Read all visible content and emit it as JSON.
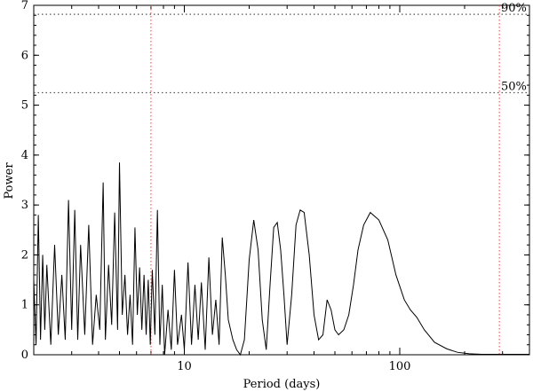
{
  "chart_data": {
    "type": "line",
    "title": "",
    "xlabel": "Period (days)",
    "ylabel": "Power",
    "x_scale": "log",
    "xlim": [
      2,
      400
    ],
    "ylim": [
      0,
      7
    ],
    "x_ticks": [
      10,
      100
    ],
    "x_tick_labels": [
      "10",
      "100"
    ],
    "y_ticks": [
      0,
      1,
      2,
      3,
      4,
      5,
      6,
      7
    ],
    "y_tick_labels": [
      "0",
      "1",
      "2",
      "3",
      "4",
      "5",
      "6",
      "7"
    ],
    "grid": false,
    "colors": {
      "curve": "#000000",
      "threshold": "#555555",
      "marker": "#e8463c"
    },
    "thresholds": [
      {
        "label": "90%",
        "value": 6.82
      },
      {
        "label": "50%",
        "value": 5.25
      }
    ],
    "vertical_markers": [
      {
        "x": 7.0
      },
      {
        "x": 290
      }
    ],
    "series": [
      {
        "x": [
          2.0,
          2.05,
          2.1,
          2.15,
          2.2,
          2.25,
          2.3,
          2.4,
          2.5,
          2.6,
          2.7,
          2.8,
          2.9,
          3.0,
          3.1,
          3.2,
          3.3,
          3.45,
          3.6,
          3.75,
          3.9,
          4.05,
          4.2,
          4.3,
          4.45,
          4.6,
          4.75,
          4.9,
          5.0,
          5.15,
          5.3,
          5.45,
          5.6,
          5.75,
          5.9,
          6.05,
          6.2,
          6.35,
          6.5,
          6.65,
          6.8,
          6.95,
          7.1,
          7.3,
          7.5,
          7.7,
          7.9,
          8.1,
          8.4,
          8.7,
          9.0,
          9.3,
          9.7,
          10.0,
          10.4,
          10.8,
          11.2,
          11.6,
          12.0,
          12.5,
          13.0,
          13.5,
          14.0,
          14.5,
          15.0,
          15.5,
          16.0,
          16.8,
          17.5,
          18.2,
          19.0,
          20.0,
          21.0,
          22.0,
          23.0,
          24.0,
          25.0,
          26.0,
          27.0,
          28.0,
          29.0,
          30.0,
          31.5,
          33.0,
          34.5,
          36.0,
          38.0,
          40.0,
          42.0,
          44.0,
          46.0,
          48.0,
          50.0,
          52.0,
          55.0,
          58.0,
          61.0,
          64.0,
          68.0,
          73.0,
          80.0,
          88.0,
          96.0,
          105.0,
          112.0,
          120.0,
          130.0,
          145.0,
          165.0,
          185.0,
          210.0,
          240.0,
          270.0,
          300.0,
          340.0,
          380.0,
          400.0
        ],
        "y": [
          1.5,
          0.2,
          2.8,
          0.3,
          2.0,
          0.5,
          1.8,
          0.2,
          2.2,
          0.4,
          1.6,
          0.3,
          3.1,
          0.5,
          2.9,
          0.3,
          2.2,
          0.4,
          2.6,
          0.2,
          1.2,
          0.5,
          3.45,
          0.3,
          1.8,
          0.6,
          2.85,
          0.5,
          3.85,
          0.8,
          1.6,
          0.4,
          1.2,
          0.2,
          2.55,
          0.8,
          1.75,
          0.5,
          1.6,
          0.4,
          1.5,
          0.2,
          1.7,
          0.4,
          2.9,
          0.2,
          1.4,
          0.0,
          0.9,
          0.1,
          1.7,
          0.2,
          0.8,
          0.1,
          1.85,
          0.2,
          1.4,
          0.3,
          1.45,
          0.1,
          1.95,
          0.4,
          1.1,
          0.2,
          2.35,
          1.6,
          0.7,
          0.3,
          0.1,
          0.0,
          0.3,
          1.9,
          2.7,
          2.1,
          0.7,
          0.1,
          1.4,
          2.55,
          2.65,
          2.1,
          1.2,
          0.2,
          1.2,
          2.6,
          2.9,
          2.85,
          2.0,
          0.8,
          0.3,
          0.4,
          1.1,
          0.9,
          0.5,
          0.4,
          0.5,
          0.8,
          1.4,
          2.1,
          2.6,
          2.85,
          2.7,
          2.3,
          1.6,
          1.1,
          0.9,
          0.75,
          0.5,
          0.25,
          0.12,
          0.05,
          0.02,
          0.01,
          0.01,
          0.01,
          0.01,
          0.01,
          0.01
        ]
      }
    ]
  }
}
